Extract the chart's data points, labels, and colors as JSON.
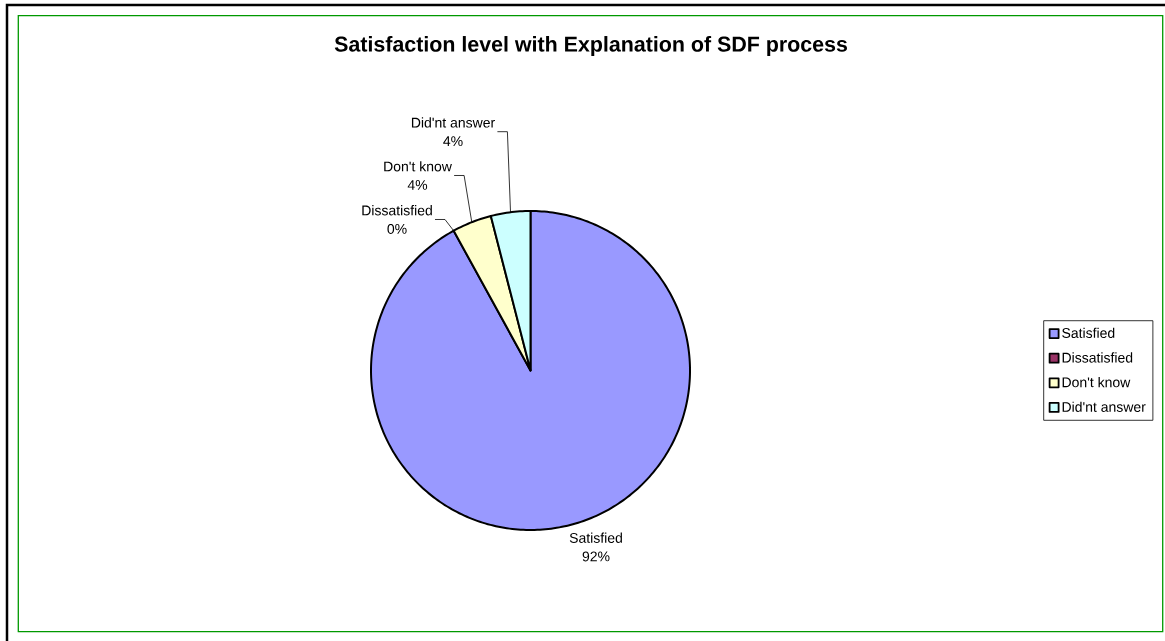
{
  "chart_data": {
    "type": "pie",
    "title": "Satisfaction level with Explanation of SDF process",
    "categories": [
      "Satisfied",
      "Dissatisfied",
      "Don't know",
      "Did'nt answer"
    ],
    "values": [
      92,
      0,
      4,
      4
    ],
    "colors": [
      "#9999ff",
      "#993366",
      "#ffffcc",
      "#ccffff"
    ],
    "value_labels": [
      "92%",
      "0%",
      "4%",
      "4%"
    ],
    "legend": "right"
  }
}
